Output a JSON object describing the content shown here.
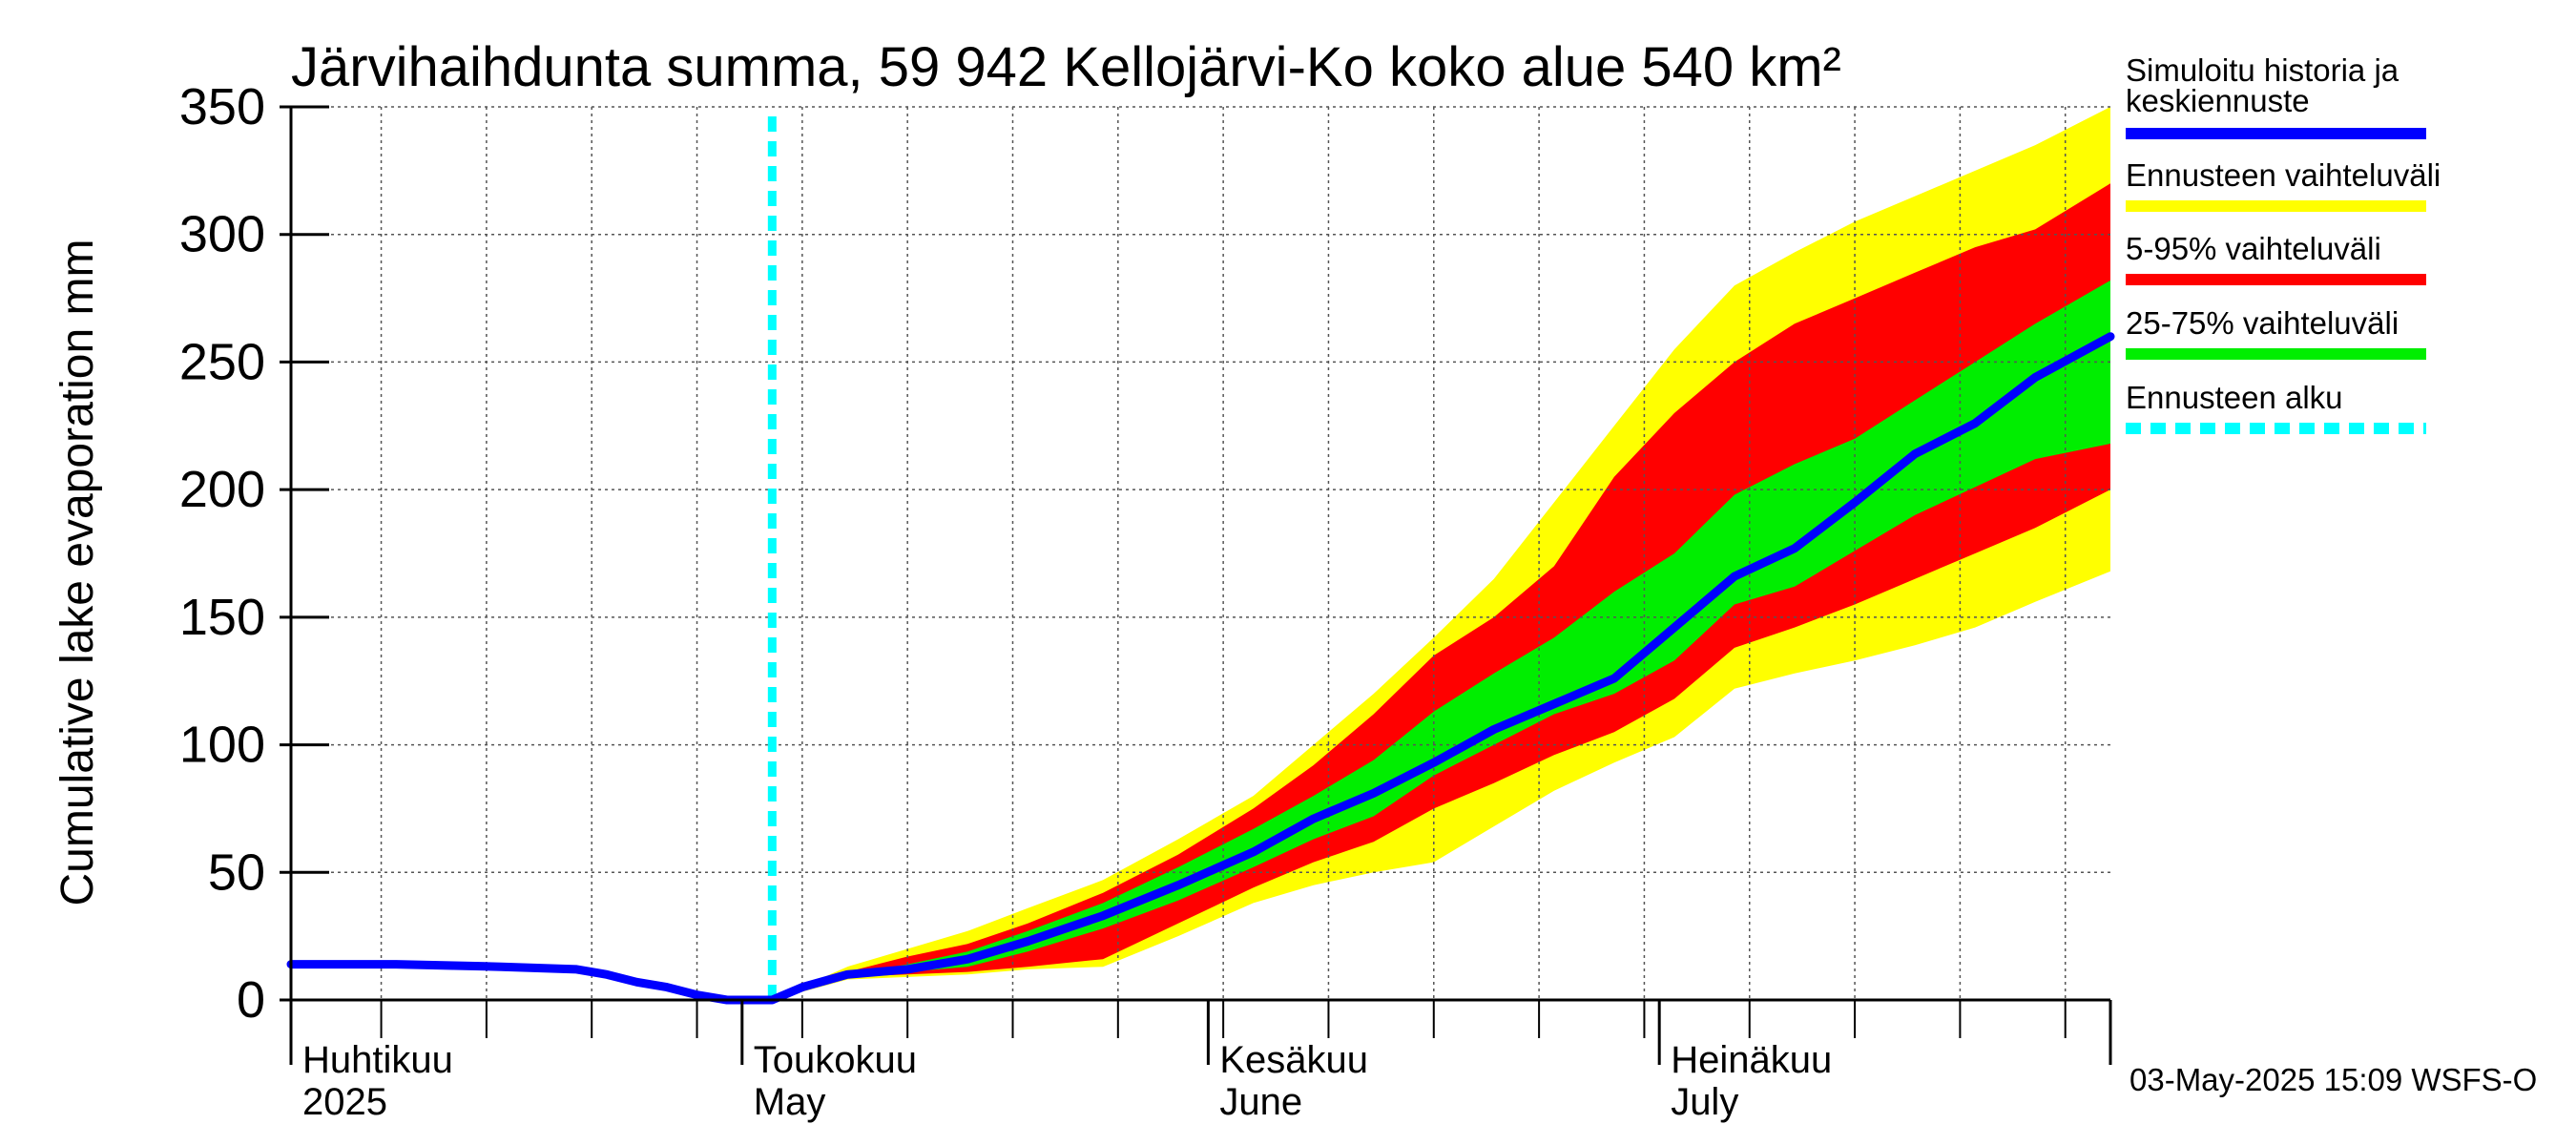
{
  "chart_data": {
    "type": "area",
    "title": "Järvihaihdunta summa, 59 942 Kellojärvi-Ko koko alue 540 km²",
    "ylabel": "Cumulative lake evaporation   mm",
    "ylim": [
      0,
      350
    ],
    "yticks": [
      0,
      50,
      100,
      150,
      200,
      250,
      300,
      350
    ],
    "grid": true,
    "legend_position": "right",
    "xlim": [
      "2025-04-01",
      "2025-07-31"
    ],
    "x_month_labels": [
      {
        "fi": "Huhtikuu",
        "en": "2025",
        "start": "2025-04-01"
      },
      {
        "fi": "Toukokuu",
        "en": "May",
        "start": "2025-05-01"
      },
      {
        "fi": "Kesäkuu",
        "en": "June",
        "start": "2025-06-01"
      },
      {
        "fi": "Heinäkuu",
        "en": "July",
        "start": "2025-07-01"
      }
    ],
    "forecast_start": "2025-05-03",
    "series": [
      {
        "name": "Simuloitu historia ja keskiennuste",
        "color": "#0000ff",
        "x": [
          "2025-04-01",
          "2025-04-08",
          "2025-04-15",
          "2025-04-20",
          "2025-04-22",
          "2025-04-24",
          "2025-04-26",
          "2025-04-28",
          "2025-04-30",
          "2025-05-02",
          "2025-05-03",
          "2025-05-05",
          "2025-05-08",
          "2025-05-12",
          "2025-05-16",
          "2025-05-20",
          "2025-05-25",
          "2025-05-30",
          "2025-06-04",
          "2025-06-08",
          "2025-06-12",
          "2025-06-16",
          "2025-06-20",
          "2025-06-24",
          "2025-06-28",
          "2025-07-02",
          "2025-07-06",
          "2025-07-10",
          "2025-07-14",
          "2025-07-18",
          "2025-07-22",
          "2025-07-26",
          "2025-07-31"
        ],
        "values": [
          14,
          14,
          13,
          12,
          10,
          7,
          5,
          2,
          0,
          0,
          0,
          5,
          10,
          12,
          16,
          23,
          33,
          45,
          58,
          71,
          81,
          93,
          106,
          116,
          126,
          146,
          166,
          177,
          195,
          214,
          226,
          244,
          260
        ]
      },
      {
        "name": "Ennusteen vaihteluväli",
        "color": "#ffff00",
        "x": [
          "2025-05-03",
          "2025-05-08",
          "2025-05-12",
          "2025-05-16",
          "2025-05-20",
          "2025-05-25",
          "2025-05-30",
          "2025-06-04",
          "2025-06-08",
          "2025-06-12",
          "2025-06-16",
          "2025-06-20",
          "2025-06-24",
          "2025-06-28",
          "2025-07-02",
          "2025-07-06",
          "2025-07-10",
          "2025-07-14",
          "2025-07-18",
          "2025-07-22",
          "2025-07-26",
          "2025-07-31"
        ],
        "lower": [
          0,
          8,
          9,
          10,
          12,
          13,
          25,
          38,
          45,
          50,
          54,
          68,
          82,
          93,
          103,
          122,
          128,
          133,
          139,
          146,
          156,
          168
        ],
        "upper": [
          0,
          13,
          20,
          27,
          36,
          47,
          63,
          80,
          100,
          120,
          142,
          165,
          195,
          225,
          255,
          280,
          293,
          305,
          315,
          325,
          335,
          350
        ]
      },
      {
        "name": "5-95% vaihteluväli",
        "color": "#ff0000",
        "x": [
          "2025-05-03",
          "2025-05-08",
          "2025-05-12",
          "2025-05-16",
          "2025-05-20",
          "2025-05-25",
          "2025-05-30",
          "2025-06-04",
          "2025-06-08",
          "2025-06-12",
          "2025-06-16",
          "2025-06-20",
          "2025-06-24",
          "2025-06-28",
          "2025-07-02",
          "2025-07-06",
          "2025-07-10",
          "2025-07-14",
          "2025-07-18",
          "2025-07-22",
          "2025-07-26",
          "2025-07-31"
        ],
        "lower": [
          0,
          9,
          10,
          11,
          13,
          16,
          30,
          44,
          54,
          62,
          75,
          85,
          96,
          105,
          118,
          138,
          146,
          155,
          165,
          175,
          185,
          200
        ],
        "upper": [
          0,
          11,
          17,
          22,
          30,
          42,
          57,
          75,
          92,
          112,
          135,
          150,
          170,
          205,
          230,
          250,
          265,
          275,
          285,
          295,
          302,
          320
        ]
      },
      {
        "name": "25-75% vaihteluväli",
        "color": "#00ee00",
        "x": [
          "2025-05-03",
          "2025-05-08",
          "2025-05-12",
          "2025-05-16",
          "2025-05-20",
          "2025-05-25",
          "2025-05-30",
          "2025-06-04",
          "2025-06-08",
          "2025-06-12",
          "2025-06-16",
          "2025-06-20",
          "2025-06-24",
          "2025-06-28",
          "2025-07-02",
          "2025-07-06",
          "2025-07-10",
          "2025-07-14",
          "2025-07-18",
          "2025-07-22",
          "2025-07-26",
          "2025-07-31"
        ],
        "lower": [
          0,
          10,
          11,
          13,
          19,
          28,
          39,
          52,
          63,
          72,
          88,
          100,
          112,
          120,
          133,
          155,
          162,
          176,
          190,
          201,
          212,
          218
        ],
        "upper": [
          0,
          10,
          14,
          19,
          27,
          38,
          52,
          67,
          80,
          94,
          113,
          128,
          142,
          160,
          175,
          198,
          210,
          220,
          235,
          250,
          265,
          282
        ]
      },
      {
        "name": "Ennusteen alku",
        "color": "#00ffff"
      }
    ]
  },
  "footer": "03-May-2025 15:09 WSFS-O"
}
